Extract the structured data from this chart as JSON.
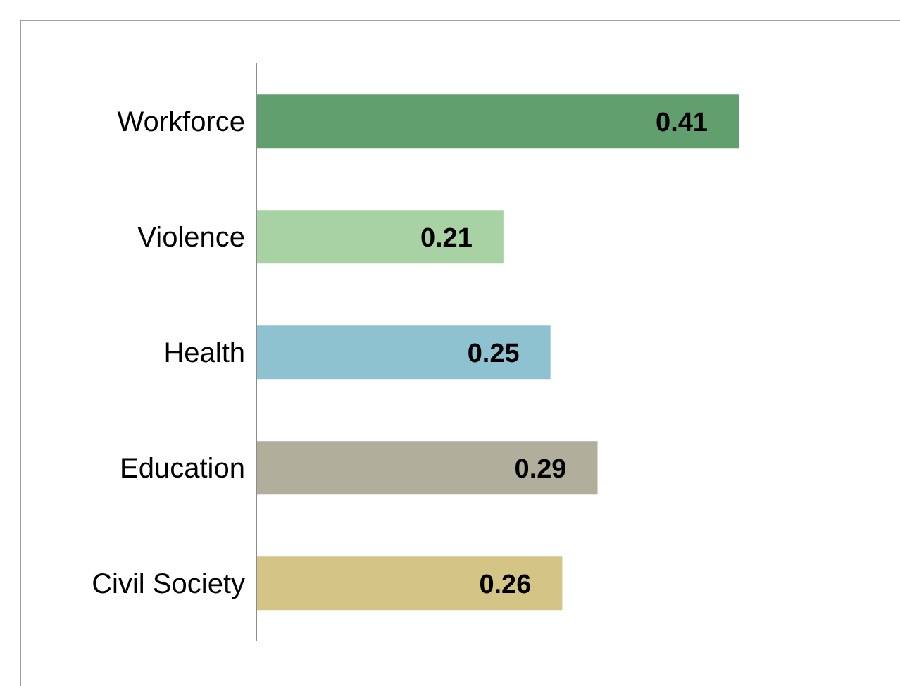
{
  "chart_data": {
    "type": "bar",
    "orientation": "horizontal",
    "categories": [
      "Workforce",
      "Violence",
      "Health",
      "Education",
      "Civil Society"
    ],
    "values": [
      0.41,
      0.21,
      0.25,
      0.29,
      0.26
    ],
    "colors": [
      "#629f6f",
      "#a8d2a4",
      "#8ec2d0",
      "#b1ae9c",
      "#d4c587"
    ],
    "data_labels": true,
    "grid": false,
    "legend": false
  }
}
